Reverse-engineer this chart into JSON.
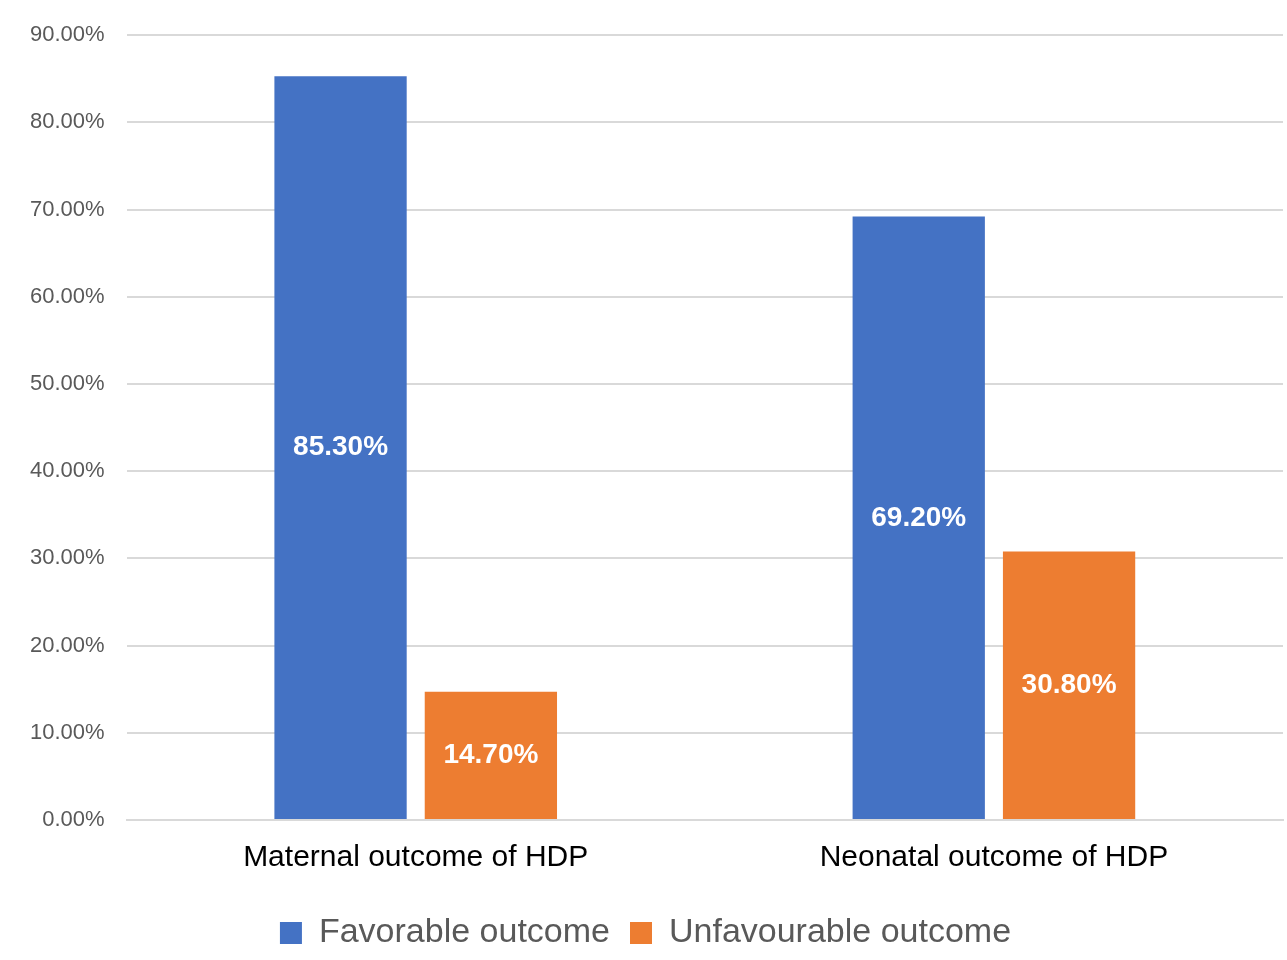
{
  "chart_data": {
    "type": "bar",
    "categories": [
      "Maternal outcome of HDP",
      "Neonatal outcome of HDP"
    ],
    "series": [
      {
        "name": "Favorable outcome",
        "color": "#4472c4",
        "values": [
          85.3,
          69.2
        ],
        "value_labels": [
          "85.30%",
          "69.20%"
        ]
      },
      {
        "name": "Unfavourable outcome",
        "color": "#ed7d31",
        "values": [
          14.7,
          30.8
        ],
        "value_labels": [
          "14.70%",
          "30.80%"
        ]
      }
    ],
    "ylim": [
      0,
      90
    ],
    "yticks": [
      {
        "value": 0,
        "label": "0.00%"
      },
      {
        "value": 10,
        "label": "10.00%"
      },
      {
        "value": 20,
        "label": "20.00%"
      },
      {
        "value": 30,
        "label": "30.00%"
      },
      {
        "value": 40,
        "label": "40.00%"
      },
      {
        "value": 50,
        "label": "50.00%"
      },
      {
        "value": 60,
        "label": "60.00%"
      },
      {
        "value": 70,
        "label": "70.00%"
      },
      {
        "value": 80,
        "label": "80.00%"
      },
      {
        "value": 90,
        "label": "90.00%"
      }
    ],
    "grid": "y",
    "legend": "bottom"
  }
}
